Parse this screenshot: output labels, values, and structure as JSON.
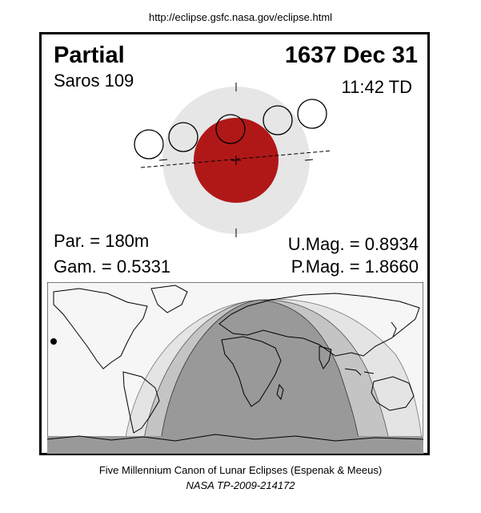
{
  "header": {
    "url": "http://eclipse.gsfc.nasa.gov/eclipse.html"
  },
  "eclipse": {
    "type": "Partial",
    "date": "1637 Dec 31",
    "saros": "Saros 109",
    "time": "11:42 TD",
    "partial_duration": "Par. = 180m",
    "gamma": "Gam. = 0.5331",
    "umbral_magnitude": "U.Mag. = 0.8934",
    "penumbral_magnitude": "P.Mag. = 1.8660"
  },
  "colors": {
    "penumbra": "#e6e6e6",
    "umbra": "#b01818",
    "map_visible": "#999999",
    "map_partial": "#bdbdbd",
    "map_penumbral": "#dcdcdc",
    "map_none": "#f6f6f6"
  },
  "footer": {
    "line1": "Five Millennium Canon of Lunar Eclipses (Espenak & Meeus)",
    "line2": "NASA TP-2009-214172"
  }
}
